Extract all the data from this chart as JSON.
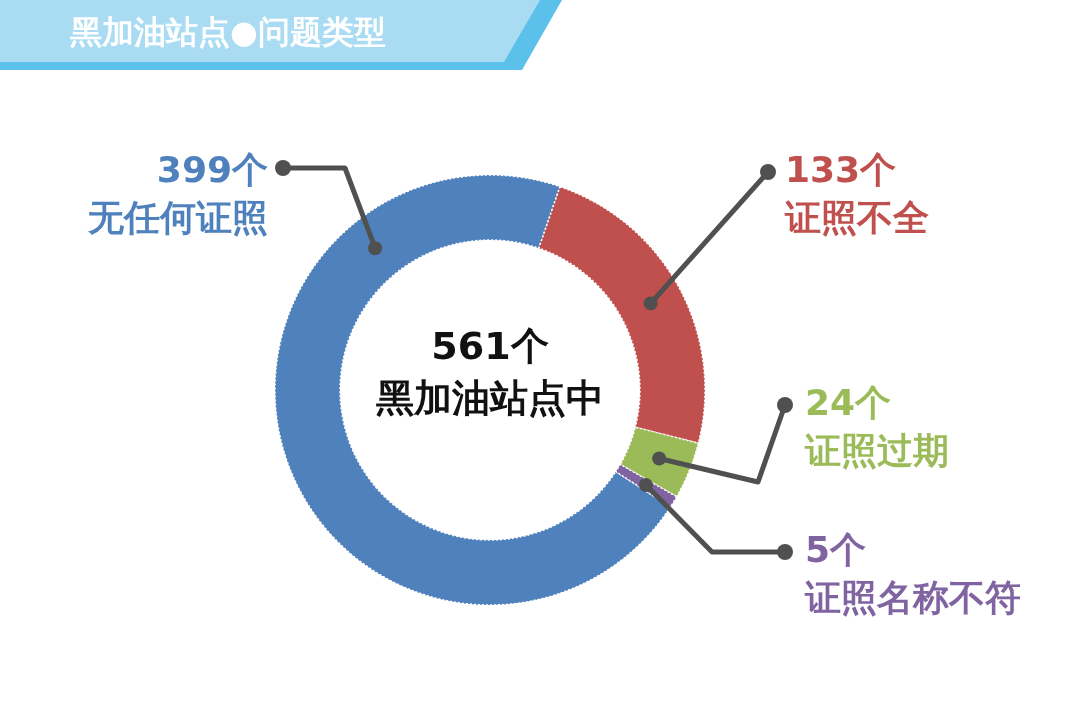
{
  "chart_data": {
    "type": "donut",
    "title": "黑加油站点●问题类型",
    "categories": [
      "无任何证照",
      "证照不全",
      "证照过期",
      "证照名称不符"
    ],
    "values": [
      399,
      133,
      24,
      5
    ],
    "colors": [
      "#4f81bd",
      "#c0504d",
      "#9bbb59",
      "#8064a2"
    ],
    "value_labels": [
      "399个",
      "133个",
      "24个",
      "5个"
    ],
    "annotations": [
      "561个",
      "黑加油站点中"
    ]
  }
}
